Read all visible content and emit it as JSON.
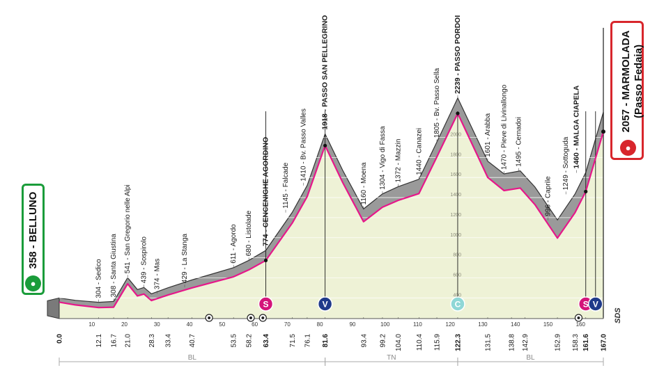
{
  "chart_data": {
    "type": "area",
    "title": "",
    "xlabel": "",
    "ylabel": "",
    "x_unit": "km",
    "xlim": [
      0,
      167
    ],
    "ylim": [
      0,
      2300
    ],
    "x_ticks": [
      10,
      20,
      30,
      40,
      50,
      60,
      70,
      80,
      90,
      100,
      110,
      120,
      130,
      140,
      150,
      160
    ],
    "y_ticks": [
      400,
      600,
      800,
      1000,
      1200,
      1400,
      1600,
      1800,
      2000
    ],
    "start": {
      "km": 0,
      "elevation": 358,
      "label": "358 - BELLUNO"
    },
    "finish": {
      "km": 167,
      "elevation": 2057,
      "label_line1": "2057 - MARMOLADA",
      "label_line2": "(Passo Fedaia)"
    },
    "profile": [
      {
        "km": 0,
        "elev": 358
      },
      {
        "km": 5,
        "elev": 330
      },
      {
        "km": 12.1,
        "elev": 304
      },
      {
        "km": 16.7,
        "elev": 308
      },
      {
        "km": 21.0,
        "elev": 541
      },
      {
        "km": 24,
        "elev": 420
      },
      {
        "km": 26,
        "elev": 439
      },
      {
        "km": 28.3,
        "elev": 374
      },
      {
        "km": 33.4,
        "elev": 429
      },
      {
        "km": 40.7,
        "elev": 500
      },
      {
        "km": 53.5,
        "elev": 611
      },
      {
        "km": 58.2,
        "elev": 680
      },
      {
        "km": 63.4,
        "elev": 774
      },
      {
        "km": 71.5,
        "elev": 1145
      },
      {
        "km": 76.1,
        "elev": 1410
      },
      {
        "km": 81.6,
        "elev": 1918
      },
      {
        "km": 87,
        "elev": 1550
      },
      {
        "km": 93.4,
        "elev": 1160
      },
      {
        "km": 99.2,
        "elev": 1304
      },
      {
        "km": 104.0,
        "elev": 1372
      },
      {
        "km": 110.4,
        "elev": 1440
      },
      {
        "km": 115.9,
        "elev": 1805
      },
      {
        "km": 122.3,
        "elev": 2239
      },
      {
        "km": 131.5,
        "elev": 1601
      },
      {
        "km": 136.5,
        "elev": 1470
      },
      {
        "km": 141.5,
        "elev": 1495
      },
      {
        "km": 146,
        "elev": 1330
      },
      {
        "km": 152.9,
        "elev": 996
      },
      {
        "km": 158.3,
        "elev": 1249
      },
      {
        "km": 161.6,
        "elev": 1460
      },
      {
        "km": 167.0,
        "elev": 2057
      }
    ],
    "profile_labels": [
      {
        "km": 12.1,
        "elev": 304,
        "text": "304 - Sedico"
      },
      {
        "km": 16.7,
        "elev": 308,
        "text": "308 - Santa Giustina"
      },
      {
        "km": 21.0,
        "elev": 541,
        "text": "541 - San Gregorio nelle Alpi"
      },
      {
        "km": 26.0,
        "elev": 439,
        "text": "439 - Sospirolo"
      },
      {
        "km": 30.0,
        "elev": 374,
        "text": "374 - Mas"
      },
      {
        "km": 38.5,
        "elev": 429,
        "text": "429 - La Stanga"
      },
      {
        "km": 53.5,
        "elev": 611,
        "text": "611 - Agordo"
      },
      {
        "km": 58.2,
        "elev": 680,
        "text": "680 - Listolade"
      },
      {
        "km": 63.4,
        "elev": 774,
        "text": "774 - CENCENIGHE AGORDINO",
        "bold": true
      },
      {
        "km": 69.5,
        "elev": 1145,
        "text": "1145 - Falcade"
      },
      {
        "km": 75.0,
        "elev": 1410,
        "text": "1410 - Bv. Passo Valles"
      },
      {
        "km": 81.6,
        "elev": 1918,
        "text": "1918 - PASSO SAN PELLEGRINO",
        "bold": true
      },
      {
        "km": 93.4,
        "elev": 1160,
        "text": "1160 - Moena"
      },
      {
        "km": 99.2,
        "elev": 1304,
        "text": "1304 - Vigo di Fassa"
      },
      {
        "km": 104.0,
        "elev": 1372,
        "text": "1372 - Mazzin"
      },
      {
        "km": 110.4,
        "elev": 1440,
        "text": "1440 - Canazei"
      },
      {
        "km": 115.9,
        "elev": 1805,
        "text": "1805 - Bv. Passo Sella"
      },
      {
        "km": 122.3,
        "elev": 2239,
        "text": "2239 - PASSO PORDOI",
        "bold": true
      },
      {
        "km": 131.5,
        "elev": 1601,
        "text": "1601 - Arabba"
      },
      {
        "km": 136.5,
        "elev": 1470,
        "text": "1470 - Pieve di Livinallongo"
      },
      {
        "km": 141.0,
        "elev": 1495,
        "text": "1495 - Cernadoi"
      },
      {
        "km": 150.0,
        "elev": 996,
        "text": "996 - Caprile"
      },
      {
        "km": 155.5,
        "elev": 1249,
        "text": "1249 - Sottoguda"
      },
      {
        "km": 158.8,
        "elev": 1460,
        "text": "1460 - MALGA CIAPELA",
        "bold": true
      }
    ],
    "km_labels": [
      "0.0",
      "12.1",
      "16.7",
      "21.0",
      "28.3",
      "33.4",
      "40.7",
      "53.5",
      "58.2",
      "63.4",
      "71.5",
      "76.1",
      "81.6",
      "93.4",
      "99.2",
      "104.0",
      "110.4",
      "115.9",
      "122.3",
      "131.5",
      "138.8",
      "142.9",
      "152.9",
      "158.3",
      "161.6",
      "167.0"
    ],
    "km_labels_bold": [
      "0.0",
      "63.4",
      "81.6",
      "122.3",
      "161.6",
      "167.0"
    ],
    "markers": [
      {
        "km": 63.4,
        "letter": "S",
        "kind": "sprint",
        "color": "#d4147a"
      },
      {
        "km": 81.6,
        "letter": "V",
        "kind": "kom",
        "color": "#1f3a8a"
      },
      {
        "km": 122.3,
        "letter": "C",
        "kind": "summit",
        "color": "#8fd7d6"
      },
      {
        "km": 161.6,
        "letter": "S",
        "kind": "sprint",
        "color": "#d4147a"
      },
      {
        "km": 164.6,
        "letter": "V",
        "kind": "kom",
        "color": "#1f3a8a"
      }
    ],
    "points_of_interest_km": [
      46.0,
      58.8,
      62.5,
      159.4
    ],
    "regions": [
      {
        "name": "BL",
        "from_km": 0,
        "to_km": 81.6
      },
      {
        "name": "TN",
        "from_km": 81.6,
        "to_km": 122.3
      },
      {
        "name": "BL",
        "from_km": 122.3,
        "to_km": 167
      }
    ],
    "legend": "",
    "grid": "horizontal",
    "colors": {
      "terrain_top": "#9a9a9a",
      "terrain_fill": "#eef2d6",
      "profile_line": "#e6178a",
      "grid": "#ffffff",
      "start_badge": "#1a9c3a",
      "finish_badge": "#d8262c"
    },
    "logo_text": "SDS"
  }
}
